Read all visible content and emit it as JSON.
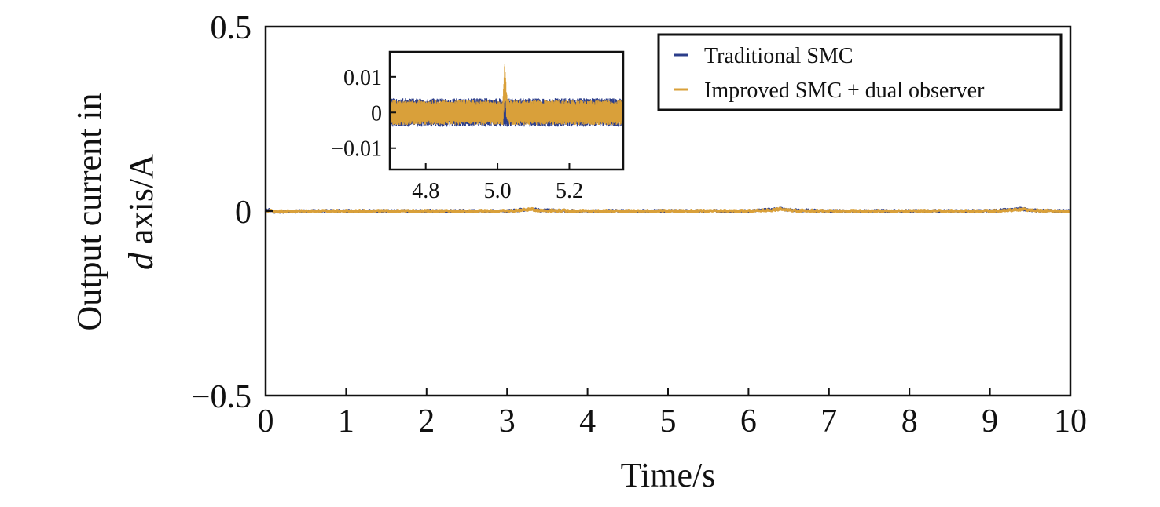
{
  "colors": {
    "traditional": "#2b3d8a",
    "improved": "#d9a03a",
    "axis": "#111111",
    "background": "#ffffff"
  },
  "chart_data": [
    {
      "id": "main",
      "type": "line",
      "xlabel": "Time/s",
      "ylabel_line1": "Output current in",
      "ylabel_var": "d",
      "ylabel_line2_rest": " axis/A",
      "xlim": [
        0,
        10
      ],
      "ylim": [
        -0.5,
        0.5
      ],
      "x_ticks": [
        0,
        1,
        2,
        3,
        4,
        5,
        6,
        7,
        8,
        9,
        10
      ],
      "x_tick_labels": [
        "0",
        "1",
        "2",
        "3",
        "4",
        "5",
        "6",
        "7",
        "8",
        "9",
        "10"
      ],
      "y_ticks": [
        -0.5,
        0,
        0.5
      ],
      "y_tick_labels": [
        "−0.5",
        "0",
        "0.5"
      ],
      "legend_position": "top-right",
      "series": [
        {
          "name": "Traditional SMC",
          "color": "#2b3d8a",
          "x": [
            0,
            0.05,
            0.1,
            0.5,
            1,
            2,
            3,
            3.2,
            3.3,
            3.4,
            4,
            5,
            6,
            6.3,
            6.4,
            6.5,
            7,
            8,
            9,
            9.3,
            9.4,
            9.5,
            10
          ],
          "y": [
            0.001,
            0.003,
            -0.002,
            0,
            0,
            0,
            0,
            0.004,
            0.006,
            0.002,
            0,
            0,
            0,
            0.004,
            0.007,
            0.003,
            0,
            0,
            0,
            0.004,
            0.006,
            0.002,
            0
          ],
          "noise_amplitude": 0.003
        },
        {
          "name": "Improved SMC + dual observer",
          "color": "#d9a03a",
          "x": [
            0,
            0.05,
            0.1,
            0.5,
            1,
            2,
            3,
            3.2,
            3.3,
            3.4,
            4,
            5,
            6,
            6.3,
            6.4,
            6.5,
            7,
            8,
            9,
            9.3,
            9.4,
            9.5,
            10
          ],
          "y": [
            0,
            0.002,
            -0.001,
            0,
            0,
            0,
            0,
            0.003,
            0.005,
            0.002,
            0,
            0,
            0,
            0.003,
            0.006,
            0.002,
            0,
            0,
            0,
            0.003,
            0.005,
            0.002,
            0
          ],
          "noise_amplitude": 0.0025
        }
      ]
    },
    {
      "id": "inset",
      "type": "line",
      "xlim": [
        4.7,
        5.35
      ],
      "ylim": [
        -0.016,
        0.017
      ],
      "x_ticks": [
        4.8,
        5.0,
        5.2
      ],
      "x_tick_labels": [
        "4.8",
        "5.0",
        "5.2"
      ],
      "y_ticks": [
        -0.01,
        0,
        0.01
      ],
      "y_tick_labels": [
        "−0.01",
        "0",
        "0.01"
      ],
      "series": [
        {
          "name": "Traditional SMC",
          "color": "#2b3d8a",
          "x": [
            4.7,
            5.35
          ],
          "y": [
            0,
            0
          ],
          "band": [
            -0.004,
            0.004
          ]
        },
        {
          "name": "Improved SMC + dual observer",
          "color": "#d9a03a",
          "x": [
            4.7,
            5.015,
            5.02,
            5.025,
            5.03,
            5.35
          ],
          "y": [
            0,
            0,
            0.011,
            0.002,
            0,
            0
          ],
          "band": [
            -0.0035,
            0.0035
          ]
        }
      ]
    }
  ]
}
